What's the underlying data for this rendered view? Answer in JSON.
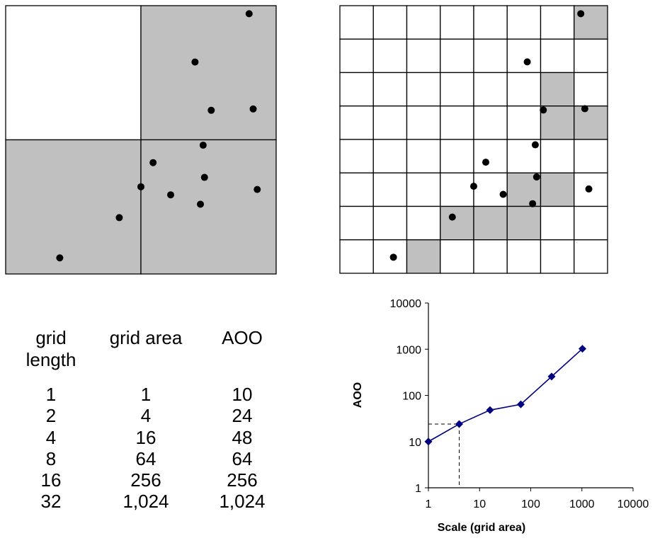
{
  "grids": {
    "coarse": {
      "divisions": 2,
      "occupied": [
        [
          1,
          0
        ],
        [
          0,
          1
        ],
        [
          1,
          1
        ]
      ],
      "points": [
        [
          0.9,
          0.03
        ],
        [
          0.7,
          0.21
        ],
        [
          0.915,
          0.385
        ],
        [
          0.76,
          0.39
        ],
        [
          0.73,
          0.52
        ],
        [
          0.545,
          0.585
        ],
        [
          0.735,
          0.64
        ],
        [
          0.5,
          0.675
        ],
        [
          0.93,
          0.685
        ],
        [
          0.61,
          0.705
        ],
        [
          0.72,
          0.74
        ],
        [
          0.42,
          0.79
        ],
        [
          0.2,
          0.94
        ]
      ]
    },
    "fine": {
      "divisions": 8,
      "occupied": [
        [
          7,
          0
        ],
        [
          6,
          2
        ],
        [
          6,
          3
        ],
        [
          7,
          3
        ],
        [
          5,
          5
        ],
        [
          6,
          5
        ],
        [
          3,
          6
        ],
        [
          4,
          6
        ],
        [
          5,
          6
        ],
        [
          2,
          7
        ]
      ],
      "points": [
        [
          0.9,
          0.03
        ],
        [
          0.7,
          0.21
        ],
        [
          0.915,
          0.385
        ],
        [
          0.76,
          0.39
        ],
        [
          0.73,
          0.52
        ],
        [
          0.545,
          0.585
        ],
        [
          0.735,
          0.64
        ],
        [
          0.5,
          0.675
        ],
        [
          0.93,
          0.685
        ],
        [
          0.61,
          0.705
        ],
        [
          0.72,
          0.74
        ],
        [
          0.42,
          0.79
        ],
        [
          0.2,
          0.94
        ]
      ]
    }
  },
  "table": {
    "headers": [
      "grid\nlength",
      "grid area",
      "AOO"
    ],
    "rows": [
      [
        "1",
        "1",
        "10"
      ],
      [
        "2",
        "4",
        "24"
      ],
      [
        "4",
        "16",
        "48"
      ],
      [
        "8",
        "64",
        "64"
      ],
      [
        "16",
        "256",
        "256"
      ],
      [
        "32",
        "1,024",
        "1,024"
      ]
    ]
  },
  "chart_data": {
    "type": "line",
    "x": [
      1,
      4,
      16,
      64,
      256,
      1024
    ],
    "series": [
      {
        "values": [
          10,
          24,
          48,
          64,
          256,
          1024
        ]
      }
    ],
    "xlabel": "Scale (grid area)",
    "ylabel": "AOO",
    "xscale": "log",
    "yscale": "log",
    "xlim": [
      1,
      10000
    ],
    "ylim": [
      1,
      10000
    ],
    "x_ticks": [
      "1",
      "10",
      "100",
      "1000",
      "10000"
    ],
    "y_ticks": [
      "1",
      "10",
      "100",
      "1000",
      "10000"
    ],
    "reference_point": {
      "x": 4,
      "y": 24,
      "style": "dashed"
    },
    "line_color": "#000080",
    "marker": "diamond",
    "grid": false
  },
  "colors": {
    "occupied": "#c0c0c0",
    "empty": "#ffffff",
    "point": "#000000",
    "border": "#000000"
  }
}
